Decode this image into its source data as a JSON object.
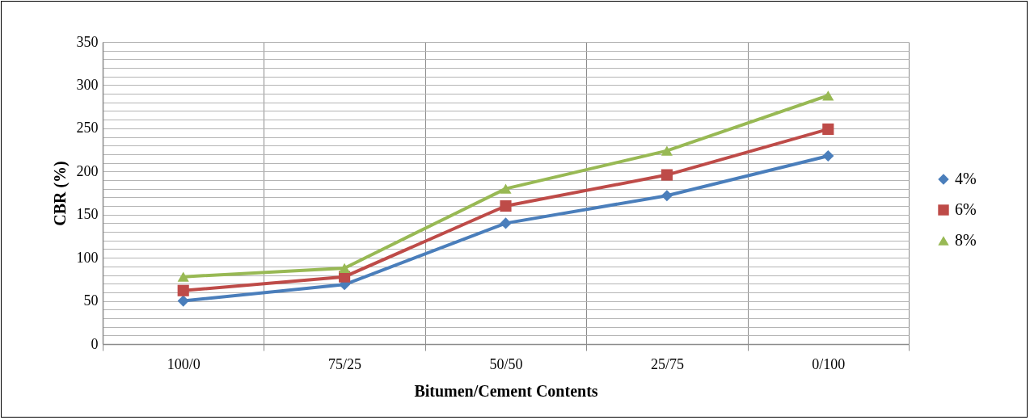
{
  "chart_data": {
    "type": "line",
    "xlabel": "Bitumen/Cement Contents",
    "ylabel": "CBR (%)",
    "categories": [
      "100/0",
      "75/25",
      "50/50",
      "25/75",
      "0/100"
    ],
    "series": [
      {
        "name": "4%",
        "color": "#4a7ebb",
        "marker": "diamond",
        "values": [
          50,
          69,
          140,
          172,
          218
        ]
      },
      {
        "name": "6%",
        "color": "#be4b48",
        "marker": "square",
        "values": [
          62,
          78,
          160,
          196,
          249
        ]
      },
      {
        "name": "8%",
        "color": "#98b954",
        "marker": "triangle",
        "values": [
          78,
          88,
          180,
          224,
          288
        ]
      }
    ],
    "ylim": [
      0,
      350
    ],
    "yticks": [
      0,
      {
        "value": 10,
        "label": null
      },
      {
        "value": 20,
        "label": null
      },
      {
        "value": 30,
        "label": null
      },
      {
        "value": 40,
        "label": null
      },
      50,
      {
        "value": 60,
        "label": null
      },
      {
        "value": 70,
        "label": null
      },
      {
        "value": 80,
        "label": null
      },
      {
        "value": 90,
        "label": null
      },
      100,
      {
        "value": 110,
        "label": null
      },
      {
        "value": 120,
        "label": null
      },
      {
        "value": 130,
        "label": null
      },
      {
        "value": 140,
        "label": null
      },
      150,
      {
        "value": 160,
        "label": null
      },
      {
        "value": 170,
        "label": null
      },
      {
        "value": 180,
        "label": null
      },
      {
        "value": 190,
        "label": null
      },
      200,
      {
        "value": 210,
        "label": null
      },
      {
        "value": 220,
        "label": null
      },
      {
        "value": 230,
        "label": null
      },
      {
        "value": 240,
        "label": null
      },
      250,
      {
        "value": 260,
        "label": null
      },
      {
        "value": 270,
        "label": null
      },
      {
        "value": 280,
        "label": null
      },
      {
        "value": 290,
        "label": null
      },
      300,
      {
        "value": 310,
        "label": null
      },
      {
        "value": 320,
        "label": null
      },
      {
        "value": 330,
        "label": null
      },
      {
        "value": 340,
        "label": null
      },
      350
    ],
    "grid": true,
    "legend": "right",
    "line_style": "solid"
  }
}
